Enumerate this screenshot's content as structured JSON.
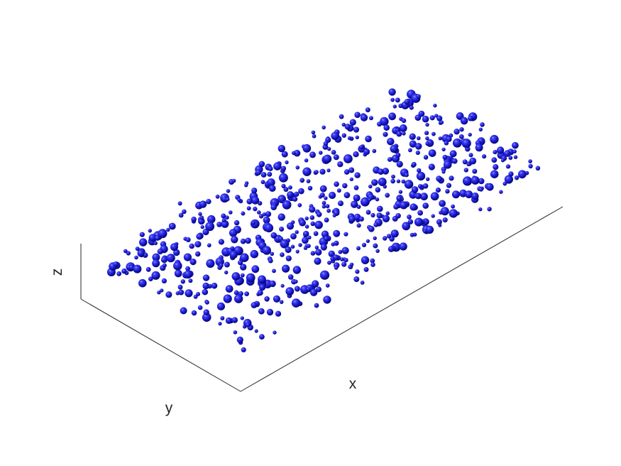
{
  "chart_data": {
    "type": "scatter",
    "projection": "isometric-3d",
    "marker": "sphere",
    "xlabel": "x",
    "ylabel": "y",
    "zlabel": "z",
    "grid": false,
    "ticks": false,
    "legend": "none",
    "colors": {
      "sphere": "#0000d0",
      "axis": "#262626",
      "background": "#ffffff"
    },
    "x_range": [
      0,
      10
    ],
    "y_range": [
      0,
      5
    ],
    "z_range": [
      0,
      2
    ],
    "radius_range": [
      0.12,
      0.3
    ],
    "approx_sphere_count": 700,
    "generator_seed": 1
  }
}
